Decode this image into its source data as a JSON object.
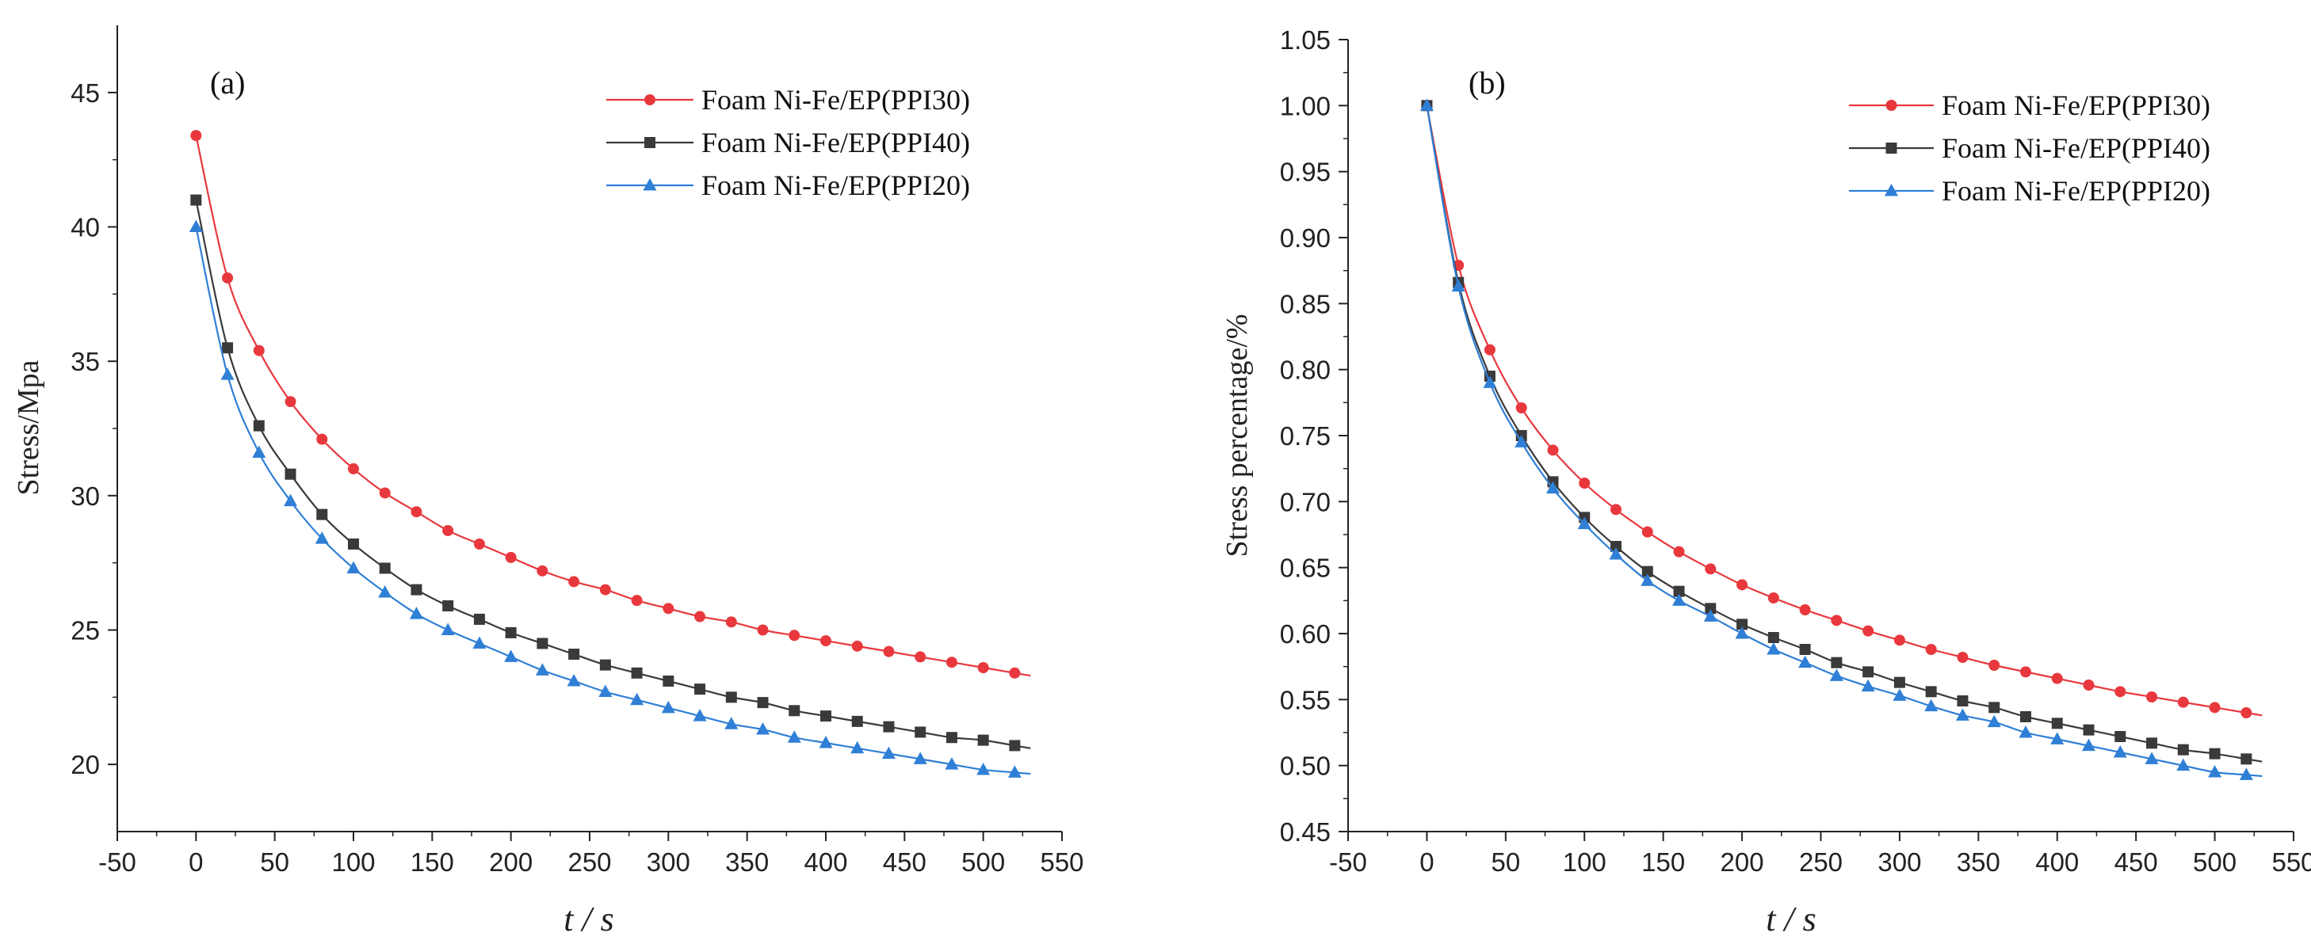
{
  "chart_data": [
    {
      "type": "line",
      "panel_label": "(a)",
      "title": "",
      "xlabel": "t / s",
      "ylabel": "Stress/Mpa",
      "xlim": [
        -50,
        550
      ],
      "ylim": [
        17.5,
        47.5
      ],
      "xticks": [
        -50,
        0,
        50,
        100,
        150,
        200,
        250,
        300,
        350,
        400,
        450,
        500,
        550
      ],
      "yticks": [
        20,
        25,
        30,
        35,
        40,
        45
      ],
      "legend_position": "top-right",
      "grid": false,
      "x": [
        0,
        20,
        40,
        60,
        80,
        100,
        120,
        140,
        160,
        180,
        200,
        220,
        240,
        260,
        280,
        300,
        320,
        340,
        360,
        380,
        400,
        420,
        440,
        460,
        480,
        500,
        520
      ],
      "series": [
        {
          "name": "Foam Ni-Fe/EP(PPI30)",
          "color": "#e8383d",
          "marker": "circle",
          "values": [
            43.4,
            38.1,
            35.4,
            33.5,
            32.1,
            31.0,
            30.1,
            29.4,
            28.7,
            28.2,
            27.7,
            27.2,
            26.8,
            26.5,
            26.1,
            25.8,
            25.5,
            25.3,
            25.0,
            24.8,
            24.6,
            24.4,
            24.2,
            24.0,
            23.8,
            23.6,
            23.4
          ]
        },
        {
          "name": "Foam Ni-Fe/EP(PPI40)",
          "color": "#3a3a3a",
          "marker": "square",
          "values": [
            41.0,
            35.5,
            32.6,
            30.8,
            29.3,
            28.2,
            27.3,
            26.5,
            25.9,
            25.4,
            24.9,
            24.5,
            24.1,
            23.7,
            23.4,
            23.1,
            22.8,
            22.5,
            22.3,
            22.0,
            21.8,
            21.6,
            21.4,
            21.2,
            21.0,
            20.9,
            20.7
          ]
        },
        {
          "name": "Foam Ni-Fe/EP(PPI20)",
          "color": "#2f7fd6",
          "marker": "triangle",
          "values": [
            40.0,
            34.5,
            31.6,
            29.8,
            28.4,
            27.3,
            26.4,
            25.6,
            25.0,
            24.5,
            24.0,
            23.5,
            23.1,
            22.7,
            22.4,
            22.1,
            21.8,
            21.5,
            21.3,
            21.0,
            20.8,
            20.6,
            20.4,
            20.2,
            20.0,
            19.8,
            19.7
          ]
        }
      ]
    },
    {
      "type": "line",
      "panel_label": "(b)",
      "title": "",
      "xlabel": "t / s",
      "ylabel": "Stress percentage/%",
      "xlim": [
        -50,
        550
      ],
      "ylim": [
        0.45,
        1.05
      ],
      "xticks": [
        -50,
        0,
        50,
        100,
        150,
        200,
        250,
        300,
        350,
        400,
        450,
        500,
        550
      ],
      "yticks": [
        "0.45",
        "0.50",
        "0.55",
        "0.60",
        "0.65",
        "0.70",
        "0.75",
        "0.80",
        "0.85",
        "0.90",
        "0.95",
        "1.00",
        "1.05"
      ],
      "legend_position": "top-right",
      "grid": false,
      "x": [
        0,
        20,
        40,
        60,
        80,
        100,
        120,
        140,
        160,
        180,
        200,
        220,
        240,
        260,
        280,
        300,
        320,
        340,
        360,
        380,
        400,
        420,
        440,
        460,
        480,
        500,
        520
      ],
      "series": [
        {
          "name": "Foam Ni-Fe/EP(PPI30)",
          "color": "#e8383d",
          "marker": "circle",
          "values": [
            1.0,
            0.879,
            0.815,
            0.771,
            0.739,
            0.714,
            0.694,
            0.677,
            0.662,
            0.649,
            0.637,
            0.627,
            0.618,
            0.61,
            0.602,
            0.595,
            0.588,
            0.582,
            0.576,
            0.571,
            0.566,
            0.561,
            0.556,
            0.552,
            0.548,
            0.544,
            0.54
          ]
        },
        {
          "name": "Foam Ni-Fe/EP(PPI40)",
          "color": "#3a3a3a",
          "marker": "square",
          "values": [
            1.0,
            0.866,
            0.795,
            0.75,
            0.715,
            0.688,
            0.666,
            0.647,
            0.632,
            0.619,
            0.607,
            0.597,
            0.588,
            0.578,
            0.571,
            0.563,
            0.556,
            0.549,
            0.544,
            0.537,
            0.532,
            0.527,
            0.522,
            0.517,
            0.512,
            0.509,
            0.505
          ]
        },
        {
          "name": "Foam Ni-Fe/EP(PPI20)",
          "color": "#2f7fd6",
          "marker": "triangle",
          "values": [
            1.0,
            0.863,
            0.79,
            0.745,
            0.71,
            0.683,
            0.66,
            0.64,
            0.625,
            0.613,
            0.6,
            0.588,
            0.578,
            0.568,
            0.56,
            0.553,
            0.545,
            0.538,
            0.533,
            0.525,
            0.52,
            0.515,
            0.51,
            0.505,
            0.5,
            0.495,
            0.493
          ]
        }
      ]
    }
  ]
}
